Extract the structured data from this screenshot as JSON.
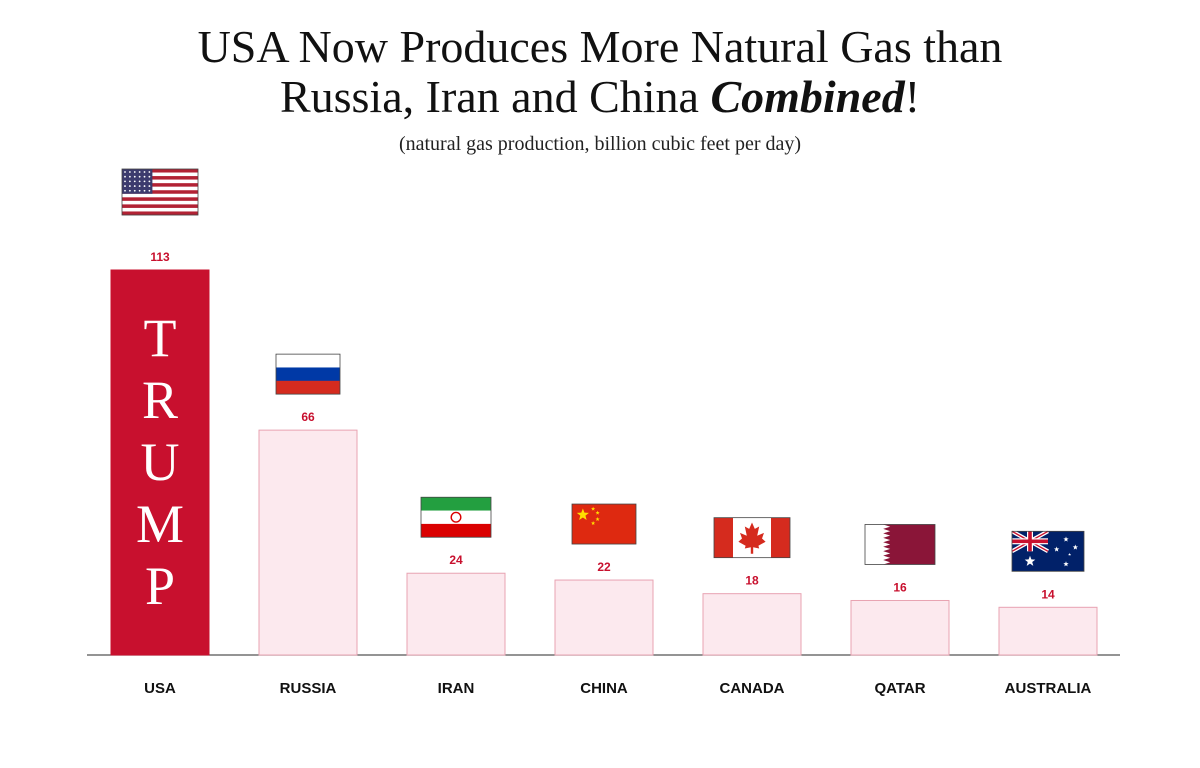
{
  "title": {
    "line1": "USA Now Produces More Natural Gas than",
    "line2_prefix": "Russia, Iran and China ",
    "line2_emph": "Combined",
    "line2_suffix": "!"
  },
  "subtitle": "(natural gas production, billion cubic feet per day)",
  "colors": {
    "highlight": "#c8102e",
    "bar_fill": "#fce9ee",
    "bar_stroke": "#e8a3b2",
    "value_label": "#c8102e",
    "axis": "#555555"
  },
  "chart_data": {
    "type": "bar",
    "title": "USA Now Produces More Natural Gas than Russia, Iran and China Combined!",
    "ylabel": "natural gas production, billion cubic feet per day",
    "xlabel": "",
    "categories": [
      "USA",
      "RUSSIA",
      "IRAN",
      "CHINA",
      "CANADA",
      "QATAR",
      "AUSTRALIA"
    ],
    "values": [
      113,
      66,
      24,
      22,
      18,
      16,
      14
    ],
    "flags": [
      "usa-flag",
      "russia-flag",
      "iran-flag",
      "china-flag",
      "canada-flag",
      "qatar-flag",
      "australia-flag"
    ],
    "highlight_index": 0,
    "highlight_text": "TRUMP",
    "ylim": [
      0,
      113
    ],
    "grid": false
  }
}
